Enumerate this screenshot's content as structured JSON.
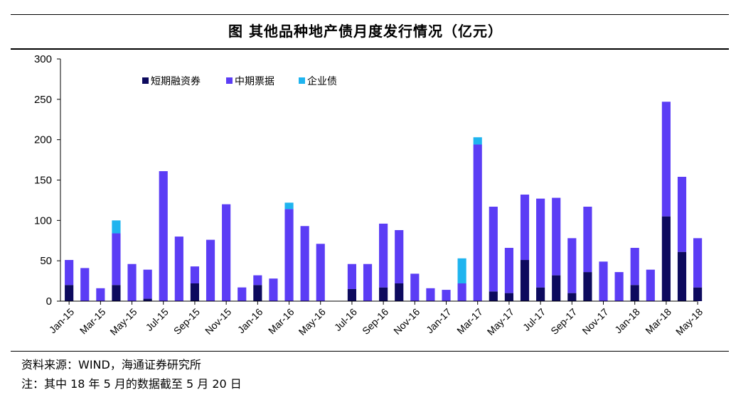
{
  "chart_data": {
    "type": "bar",
    "stacked": true,
    "title": "图  其他品种地产债月度发行情况（亿元）",
    "ylim": [
      0,
      300
    ],
    "yticks": [
      0,
      50,
      100,
      150,
      200,
      250,
      300
    ],
    "xlabel": "",
    "ylabel": "",
    "grid": false,
    "legend_position": "top-left",
    "tick_labels": [
      "Jan-15",
      "Mar-15",
      "May-15",
      "Jul-15",
      "Sep-15",
      "Nov-15",
      "Jan-16",
      "Mar-16",
      "May-16",
      "Jul-16",
      "Sep-16",
      "Nov-16",
      "Jan-17",
      "Mar-17",
      "May-17",
      "Jul-17",
      "Sep-17",
      "Nov-17",
      "Jan-18",
      "Mar-18",
      "May-18"
    ],
    "categories": [
      "Jan-15",
      "Feb-15",
      "Mar-15",
      "Apr-15",
      "May-15",
      "Jun-15",
      "Jul-15",
      "Aug-15",
      "Sep-15",
      "Oct-15",
      "Nov-15",
      "Dec-15",
      "Jan-16",
      "Feb-16",
      "Mar-16",
      "Apr-16",
      "May-16",
      "Jun-16",
      "Jul-16",
      "Aug-16",
      "Sep-16",
      "Oct-16",
      "Nov-16",
      "Dec-16",
      "Jan-17",
      "Feb-17",
      "Mar-17",
      "Apr-17",
      "May-17",
      "Jun-17",
      "Jul-17",
      "Aug-17",
      "Sep-17",
      "Oct-17",
      "Nov-17",
      "Dec-17",
      "Jan-18",
      "Feb-18",
      "Mar-18",
      "Apr-18",
      "May-18"
    ],
    "series": [
      {
        "name": "短期融资券",
        "color": "#0d0a5e",
        "values": [
          20,
          0,
          0,
          20,
          0,
          3,
          0,
          0,
          22,
          0,
          0,
          0,
          20,
          0,
          0,
          0,
          0,
          0,
          15,
          0,
          17,
          22,
          0,
          0,
          0,
          0,
          0,
          12,
          10,
          51,
          17,
          32,
          10,
          36,
          0,
          0,
          20,
          0,
          105,
          61,
          17
        ]
      },
      {
        "name": "中期票据",
        "color": "#5b3df5",
        "values": [
          31,
          41,
          16,
          64,
          46,
          36,
          161,
          80,
          21,
          76,
          120,
          17,
          12,
          28,
          114,
          93,
          71,
          0,
          31,
          46,
          79,
          66,
          34,
          16,
          14,
          22,
          194,
          105,
          56,
          81,
          110,
          96,
          68,
          81,
          49,
          36,
          46,
          39,
          142,
          93,
          61
        ]
      },
      {
        "name": "企业债",
        "color": "#1fb4ef",
        "values": [
          0,
          0,
          0,
          16,
          0,
          0,
          0,
          0,
          0,
          0,
          0,
          0,
          0,
          0,
          8,
          0,
          0,
          0,
          0,
          0,
          0,
          0,
          0,
          0,
          0,
          31,
          9,
          0,
          0,
          0,
          0,
          0,
          0,
          0,
          0,
          0,
          0,
          0,
          0,
          0,
          0
        ]
      }
    ]
  },
  "footer": {
    "source": "资料来源：WIND，海通证券研究所",
    "note": "注：其中 18 年 5 月的数据截至 5 月 20 日"
  }
}
